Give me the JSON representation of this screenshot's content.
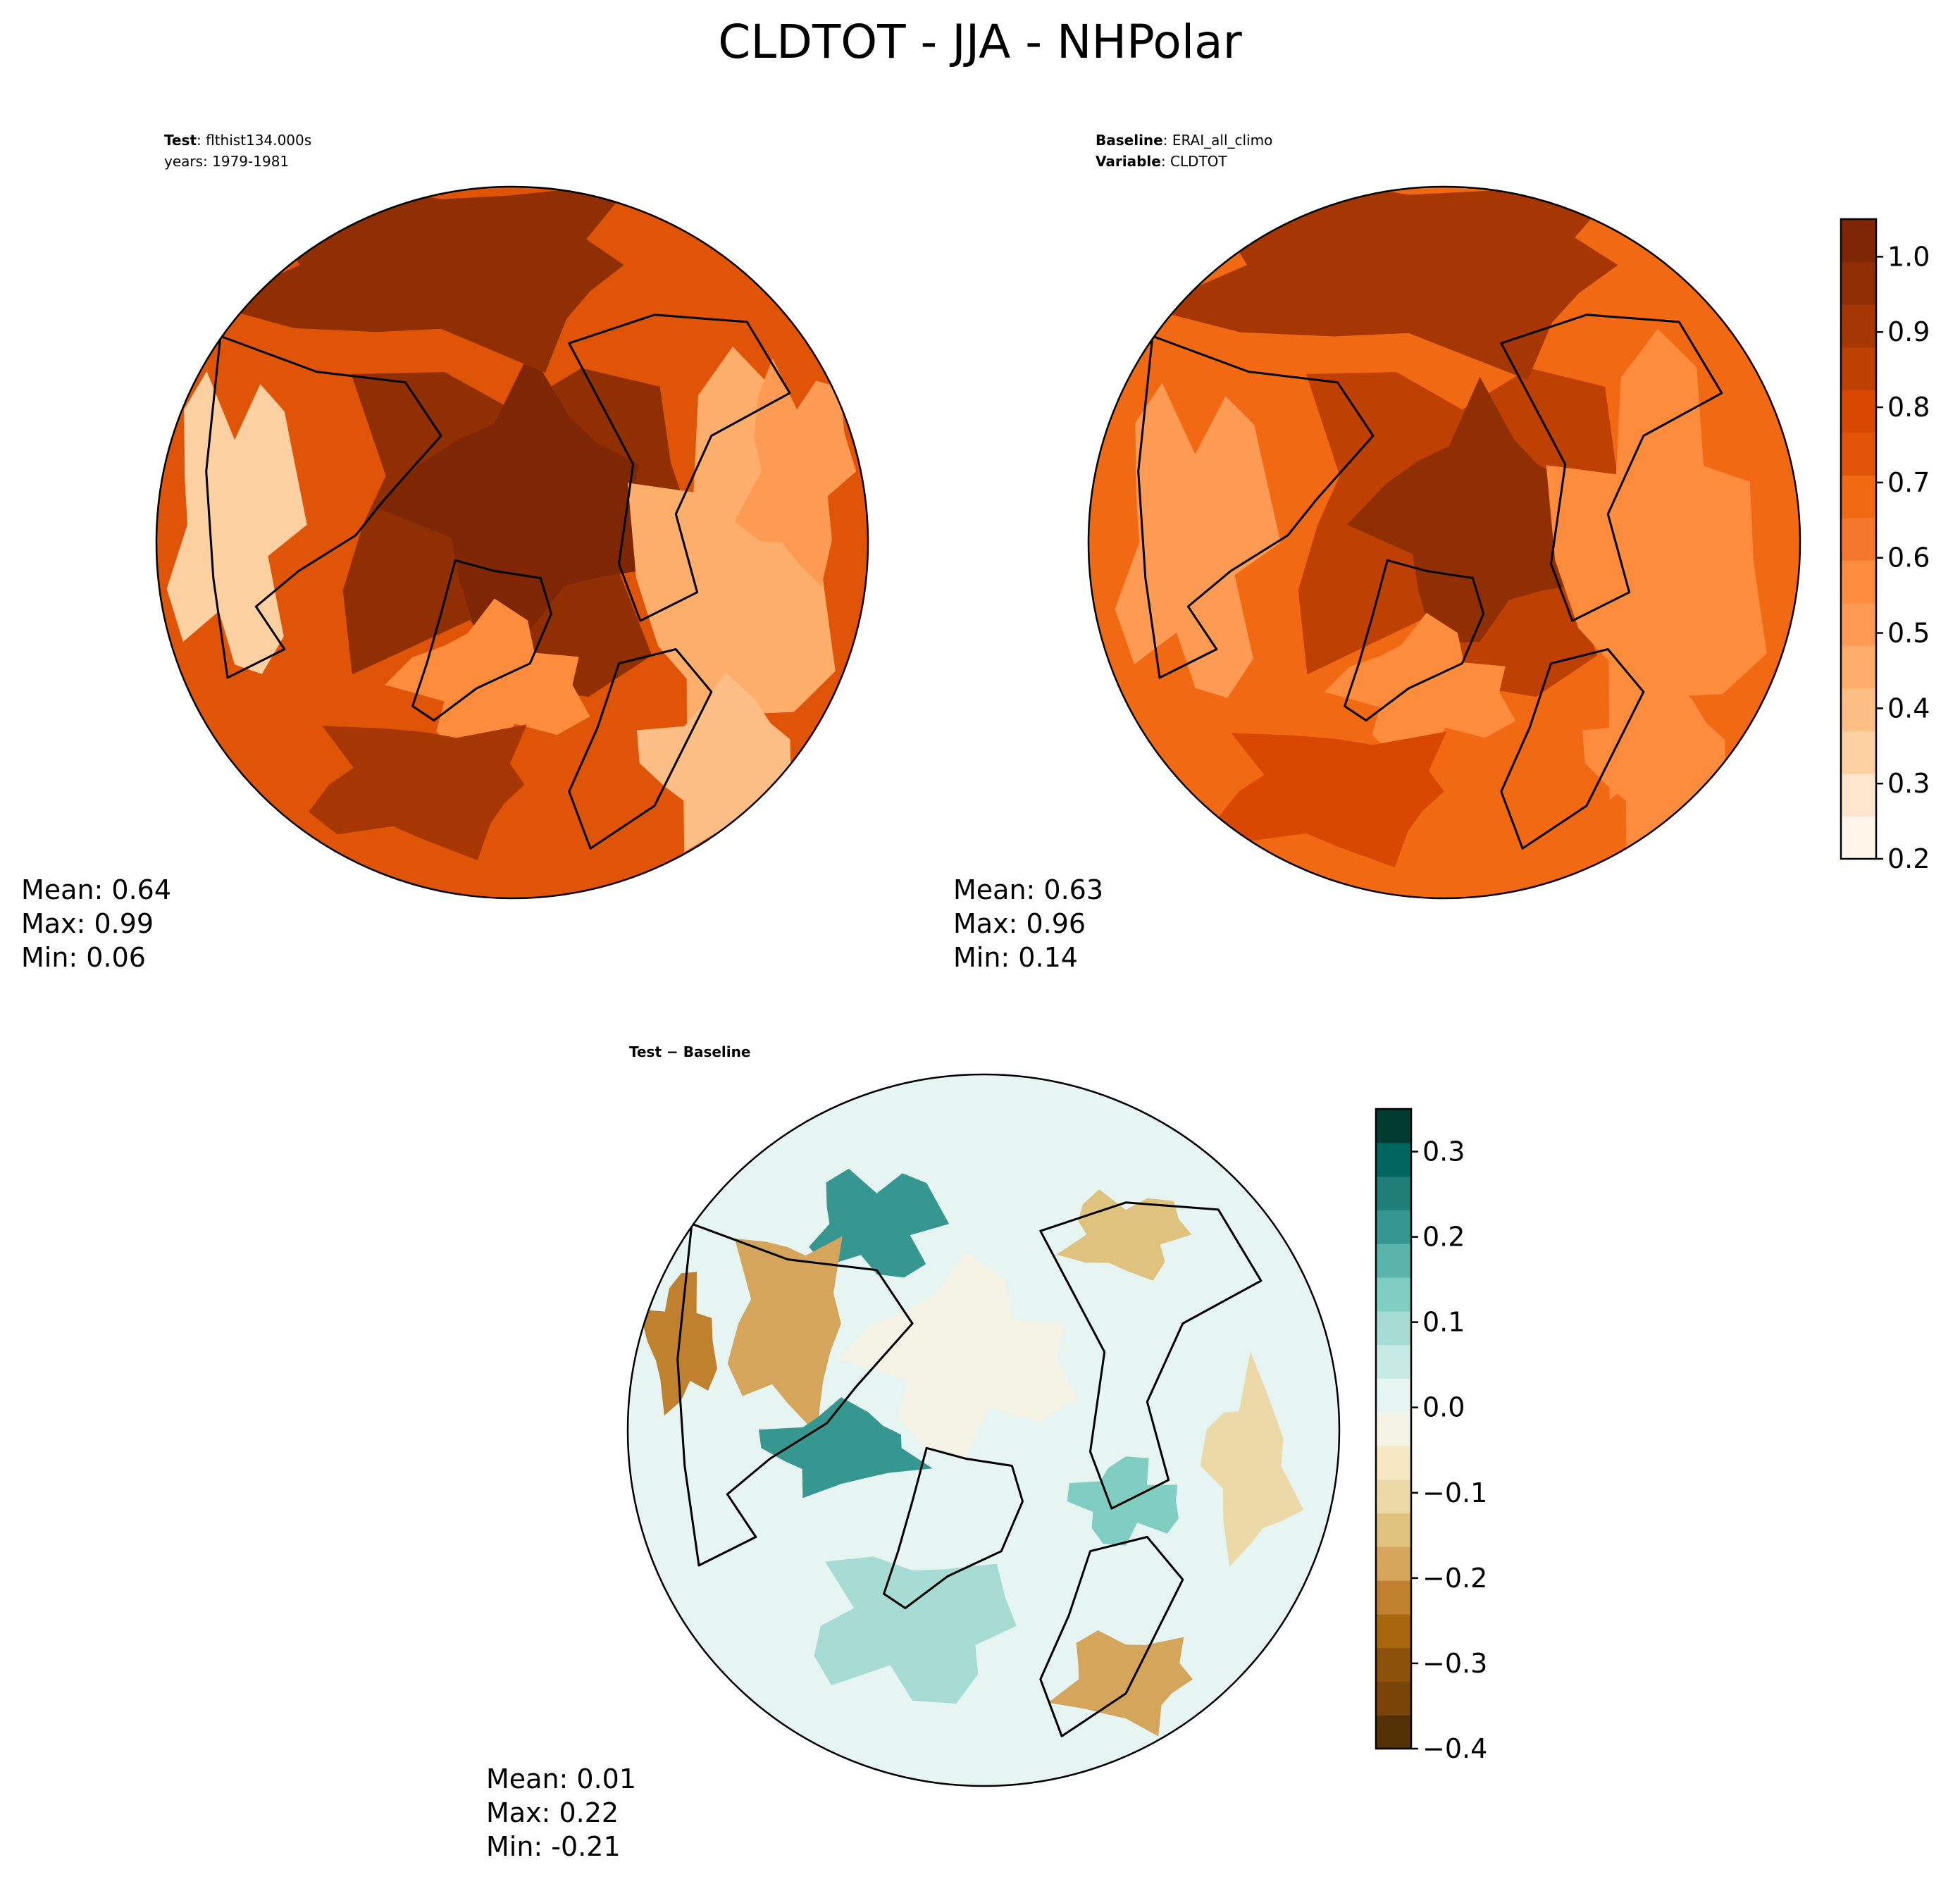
{
  "figure": {
    "title": "CLDTOT - JJA - NHPolar"
  },
  "colors": {
    "seq": [
      "#fff5eb",
      "#fee6ce",
      "#fdd0a2",
      "#fdbe85",
      "#fdae6b",
      "#fd9b54",
      "#fd8d3c",
      "#f4772c",
      "#f16913",
      "#e05408",
      "#d94801",
      "#bf4003",
      "#a63603",
      "#8f2f03",
      "#7f2704"
    ],
    "div": [
      "#543005",
      "#7a4308",
      "#8c510a",
      "#a8660e",
      "#bf812d",
      "#d4a55a",
      "#dfc27d",
      "#ecd9a8",
      "#f6e8c3",
      "#f5f2e6",
      "#e6f4f2",
      "#c7eae5",
      "#a6dcd3",
      "#80cdc1",
      "#5ab4ac",
      "#35978f",
      "#1f7f77",
      "#01665e",
      "#003c30"
    ],
    "coast": "#000000"
  },
  "chart_data": [
    {
      "type": "heatmap",
      "panel": "test",
      "header": [
        {
          "bold": "Test",
          "rest": ": flthist134.000s"
        },
        {
          "bold": "",
          "rest": "years: 1979-1981"
        }
      ],
      "stats": [
        "Mean:  0.64",
        "Max:  0.99",
        "Min:  0.06"
      ],
      "stats_values": {
        "mean": 0.64,
        "max": 0.99,
        "min": 0.06
      },
      "projection": "north polar stereographic",
      "colormap": "Oranges"
    },
    {
      "type": "heatmap",
      "panel": "baseline",
      "header": [
        {
          "bold": "Baseline",
          "rest": ": ERAI_all_climo"
        },
        {
          "bold": "Variable",
          "rest": ": CLDTOT"
        }
      ],
      "stats": [
        "Mean:  0.63",
        "Max:  0.96",
        "Min:  0.14"
      ],
      "stats_values": {
        "mean": 0.63,
        "max": 0.96,
        "min": 0.14
      },
      "projection": "north polar stereographic",
      "colormap": "Oranges",
      "colorbar": {
        "range": [
          0.2,
          1.05
        ],
        "ticks": [
          0.2,
          0.3,
          0.4,
          0.5,
          0.6,
          0.7,
          0.8,
          0.9,
          1.0
        ],
        "tick_labels": [
          "0.2",
          "0.3",
          "0.4",
          "0.5",
          "0.6",
          "0.7",
          "0.8",
          "0.9",
          "1.0"
        ]
      }
    },
    {
      "type": "heatmap",
      "panel": "difference",
      "header": [
        {
          "bold": "Test − Baseline",
          "rest": ""
        }
      ],
      "stats": [
        "Mean:  0.01",
        "Max:  0.22",
        "Min: -0.21"
      ],
      "stats_values": {
        "mean": 0.01,
        "max": 0.22,
        "min": -0.21
      },
      "projection": "north polar stereographic",
      "colormap": "BrBG",
      "colorbar": {
        "range": [
          -0.4,
          0.35
        ],
        "ticks": [
          -0.4,
          -0.3,
          -0.2,
          -0.1,
          0.0,
          0.1,
          0.2,
          0.3
        ],
        "tick_labels": [
          "−0.4",
          "−0.3",
          "−0.2",
          "−0.1",
          "0.0",
          "0.1",
          "0.2",
          "0.3"
        ]
      }
    }
  ]
}
